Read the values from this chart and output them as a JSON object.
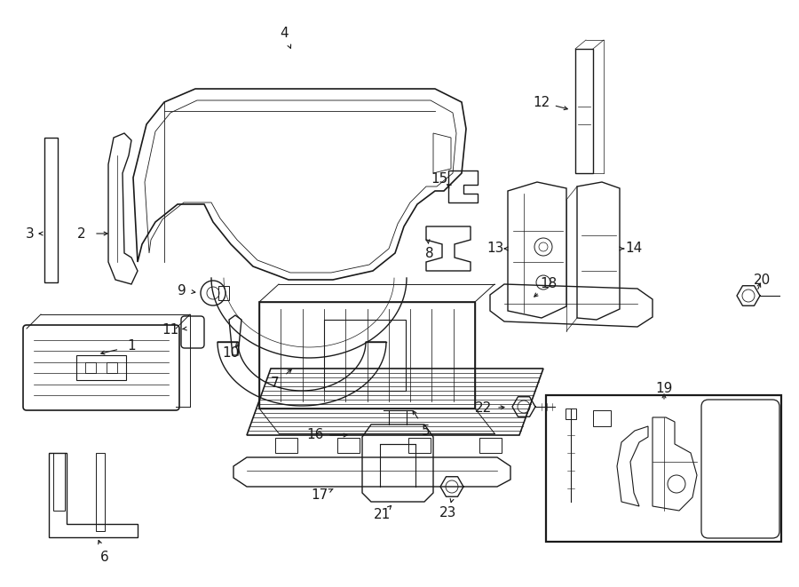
{
  "background_color": "#ffffff",
  "line_color": "#1a1a1a",
  "figure_width": 9.0,
  "figure_height": 6.61,
  "dpi": 100,
  "lw": 1.0
}
